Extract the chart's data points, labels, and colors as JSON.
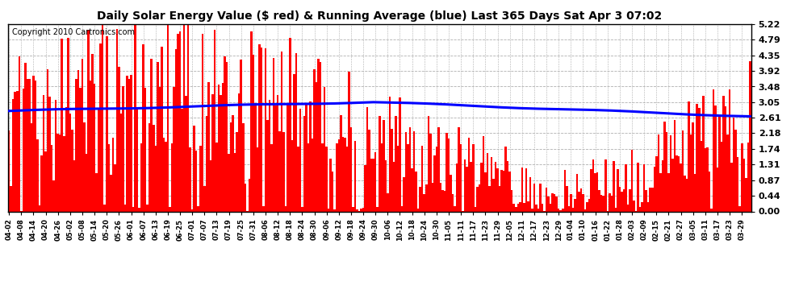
{
  "title": "Daily Solar Energy Value ($ red) & Running Average (blue) Last 365 Days Sat Apr 3 07:02",
  "copyright_text": "Copyright 2010 Cartronics.com",
  "bar_color": "#ff0000",
  "line_color": "#0000ff",
  "background_color": "#ffffff",
  "grid_color": "#b0b0b0",
  "ylim": [
    0.0,
    5.22
  ],
  "yticks": [
    0.0,
    0.44,
    0.87,
    1.31,
    1.74,
    2.18,
    2.61,
    3.05,
    3.48,
    3.92,
    4.35,
    4.79,
    5.22
  ],
  "x_labels": [
    "04-02",
    "04-08",
    "04-14",
    "04-20",
    "04-26",
    "05-02",
    "05-08",
    "05-14",
    "05-20",
    "05-26",
    "06-01",
    "06-07",
    "06-13",
    "06-19",
    "06-25",
    "07-01",
    "07-07",
    "07-13",
    "07-19",
    "07-25",
    "07-31",
    "08-06",
    "08-12",
    "08-18",
    "08-24",
    "08-30",
    "09-06",
    "09-12",
    "09-18",
    "09-24",
    "09-30",
    "10-06",
    "10-12",
    "10-18",
    "10-24",
    "10-30",
    "11-05",
    "11-11",
    "11-17",
    "11-23",
    "11-29",
    "12-05",
    "12-11",
    "12-17",
    "12-23",
    "12-29",
    "01-04",
    "01-10",
    "01-16",
    "01-22",
    "01-28",
    "02-03",
    "02-09",
    "02-15",
    "02-21",
    "02-27",
    "03-05",
    "03-11",
    "03-17",
    "03-23",
    "03-29"
  ],
  "n_bars": 365,
  "title_fontsize": 10,
  "copyright_fontsize": 7,
  "ytick_fontsize": 8,
  "xtick_fontsize": 6
}
